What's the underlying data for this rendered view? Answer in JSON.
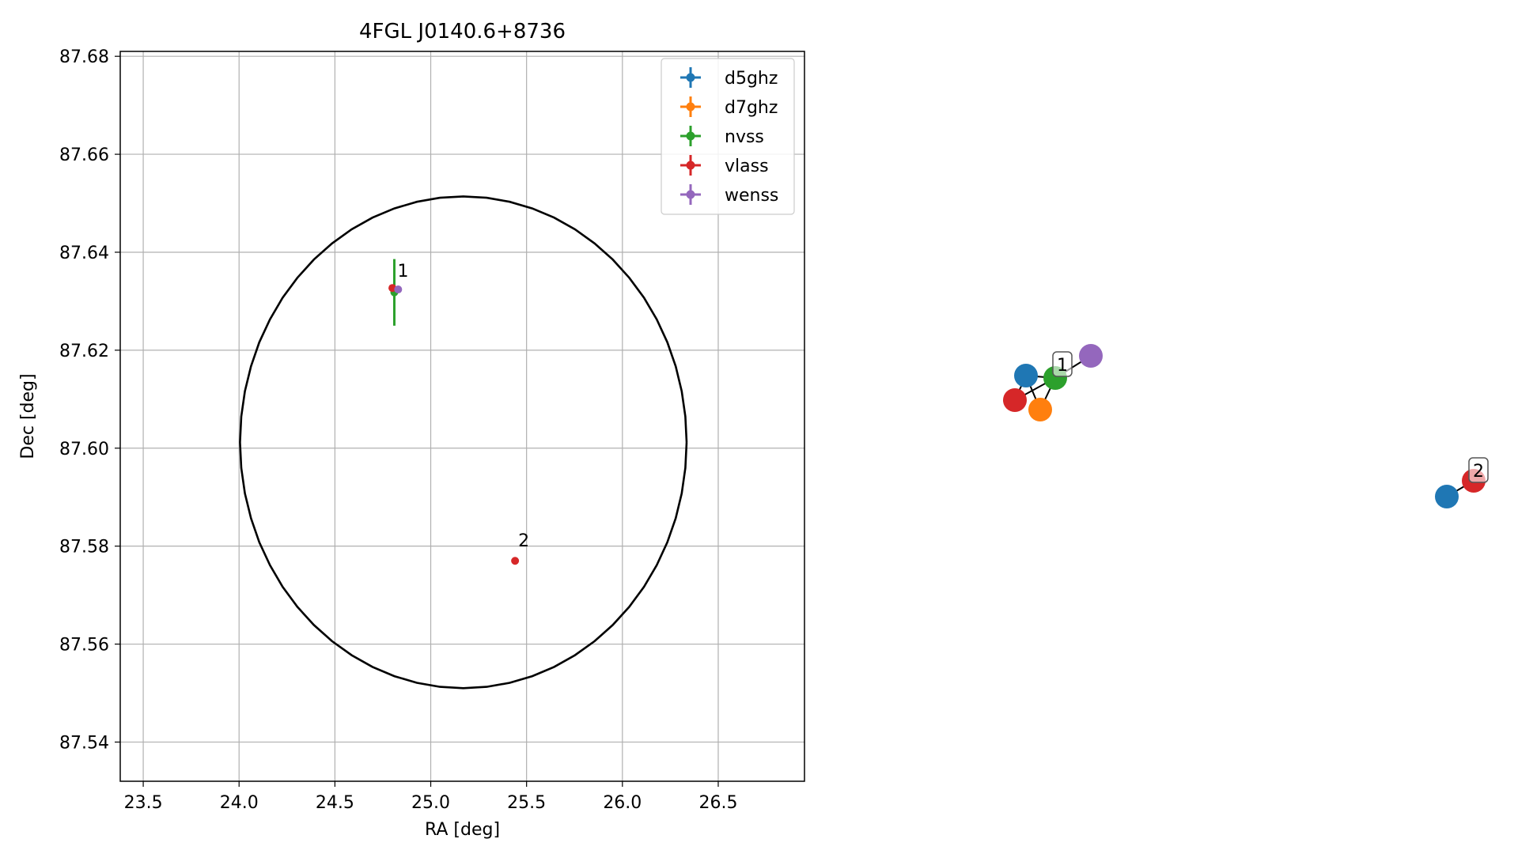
{
  "chart_data": [
    {
      "type": "scatter",
      "title": "4FGL J0140.6+8736",
      "xlabel": "RA [deg]",
      "ylabel": "Dec [deg]",
      "xlim": [
        23.38,
        26.95
      ],
      "ylim": [
        87.532,
        87.681
      ],
      "x_ticks": [
        23.5,
        24.0,
        24.5,
        25.0,
        25.5,
        26.0,
        26.5
      ],
      "x_tick_labels": [
        "23.5",
        "24.0",
        "24.5",
        "25.0",
        "25.5",
        "26.0",
        "26.5"
      ],
      "y_ticks": [
        87.54,
        87.56,
        87.58,
        87.6,
        87.62,
        87.64,
        87.66,
        87.68
      ],
      "y_tick_labels": [
        "87.54",
        "87.56",
        "87.58",
        "87.60",
        "87.62",
        "87.64",
        "87.66",
        "87.68"
      ],
      "grid": true,
      "legend_position": "top-right",
      "series": [
        {
          "name": "d5ghz",
          "color": "#1f77b4",
          "points": []
        },
        {
          "name": "d7ghz",
          "color": "#ff7f0e",
          "points": []
        },
        {
          "name": "nvss",
          "color": "#2ca02c",
          "points": [
            {
              "x": 24.81,
              "y": 87.6318,
              "yerr": 0.0068,
              "xerr": 0.0
            }
          ]
        },
        {
          "name": "vlass",
          "color": "#d62728",
          "points": [
            {
              "x": 24.8,
              "y": 87.6327,
              "yerr": 0.0,
              "xerr": 0.0
            },
            {
              "x": 25.44,
              "y": 87.577,
              "yerr": 0.0,
              "xerr": 0.0
            }
          ]
        },
        {
          "name": "wenss",
          "color": "#9467bd",
          "points": [
            {
              "x": 24.83,
              "y": 87.6324,
              "yerr": 0.0,
              "xerr": 0.0
            }
          ]
        }
      ],
      "ellipse": {
        "center_ra": 25.17,
        "center_dec": 87.6012,
        "radius_ra": 1.165,
        "radius_dec": 0.0502,
        "color": "#000000"
      },
      "annotations": [
        {
          "text": "1",
          "x": 24.81,
          "y": 87.634
        },
        {
          "text": "2",
          "x": 25.44,
          "y": 87.579
        }
      ]
    },
    {
      "type": "network",
      "groups": [
        {
          "label": "1",
          "nodes": [
            {
              "series": "d5ghz",
              "color": "#1f77b4"
            },
            {
              "series": "nvss",
              "color": "#2ca02c"
            },
            {
              "series": "wenss",
              "color": "#9467bd"
            },
            {
              "series": "vlass",
              "color": "#d62728"
            },
            {
              "series": "d7ghz",
              "color": "#ff7f0e"
            }
          ]
        },
        {
          "label": "2",
          "nodes": [
            {
              "series": "d5ghz",
              "color": "#1f77b4"
            },
            {
              "series": "vlass",
              "color": "#d62728"
            }
          ]
        }
      ]
    }
  ]
}
